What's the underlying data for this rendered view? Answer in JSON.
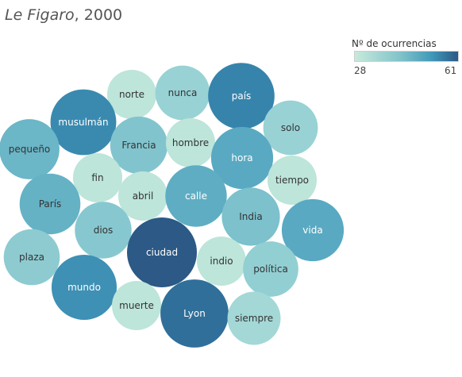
{
  "title": {
    "source": "Le Figaro",
    "separator": ", ",
    "year": "2000"
  },
  "legend": {
    "title": "Nº de ocurrencias",
    "min_label": "28",
    "max_label": "61",
    "color_min": "#c7eadb",
    "color_max": "#2c5985"
  },
  "chart_data": {
    "type": "bubble",
    "title": "Le Figaro, 2000",
    "color_range": [
      28,
      61
    ],
    "items": [
      {
        "word": "norte",
        "value": 30
      },
      {
        "word": "nunca",
        "value": 37
      },
      {
        "word": "país",
        "value": 55
      },
      {
        "word": "musulmán",
        "value": 54
      },
      {
        "word": "solo",
        "value": 37
      },
      {
        "word": "pequeño",
        "value": 45
      },
      {
        "word": "Francia",
        "value": 41
      },
      {
        "word": "hombre",
        "value": 30
      },
      {
        "word": "hora",
        "value": 48
      },
      {
        "word": "fin",
        "value": 30
      },
      {
        "word": "tiempo",
        "value": 30
      },
      {
        "word": "abril",
        "value": 30
      },
      {
        "word": "calle",
        "value": 47
      },
      {
        "word": "París",
        "value": 46
      },
      {
        "word": "India",
        "value": 42
      },
      {
        "word": "dios",
        "value": 40
      },
      {
        "word": "vida",
        "value": 48
      },
      {
        "word": "ciudad",
        "value": 61
      },
      {
        "word": "plaza",
        "value": 39
      },
      {
        "word": "indio",
        "value": 30
      },
      {
        "word": "política",
        "value": 38
      },
      {
        "word": "mundo",
        "value": 53
      },
      {
        "word": "muerte",
        "value": 30
      },
      {
        "word": "Lyon",
        "value": 58
      },
      {
        "word": "siempre",
        "value": 35
      }
    ]
  }
}
